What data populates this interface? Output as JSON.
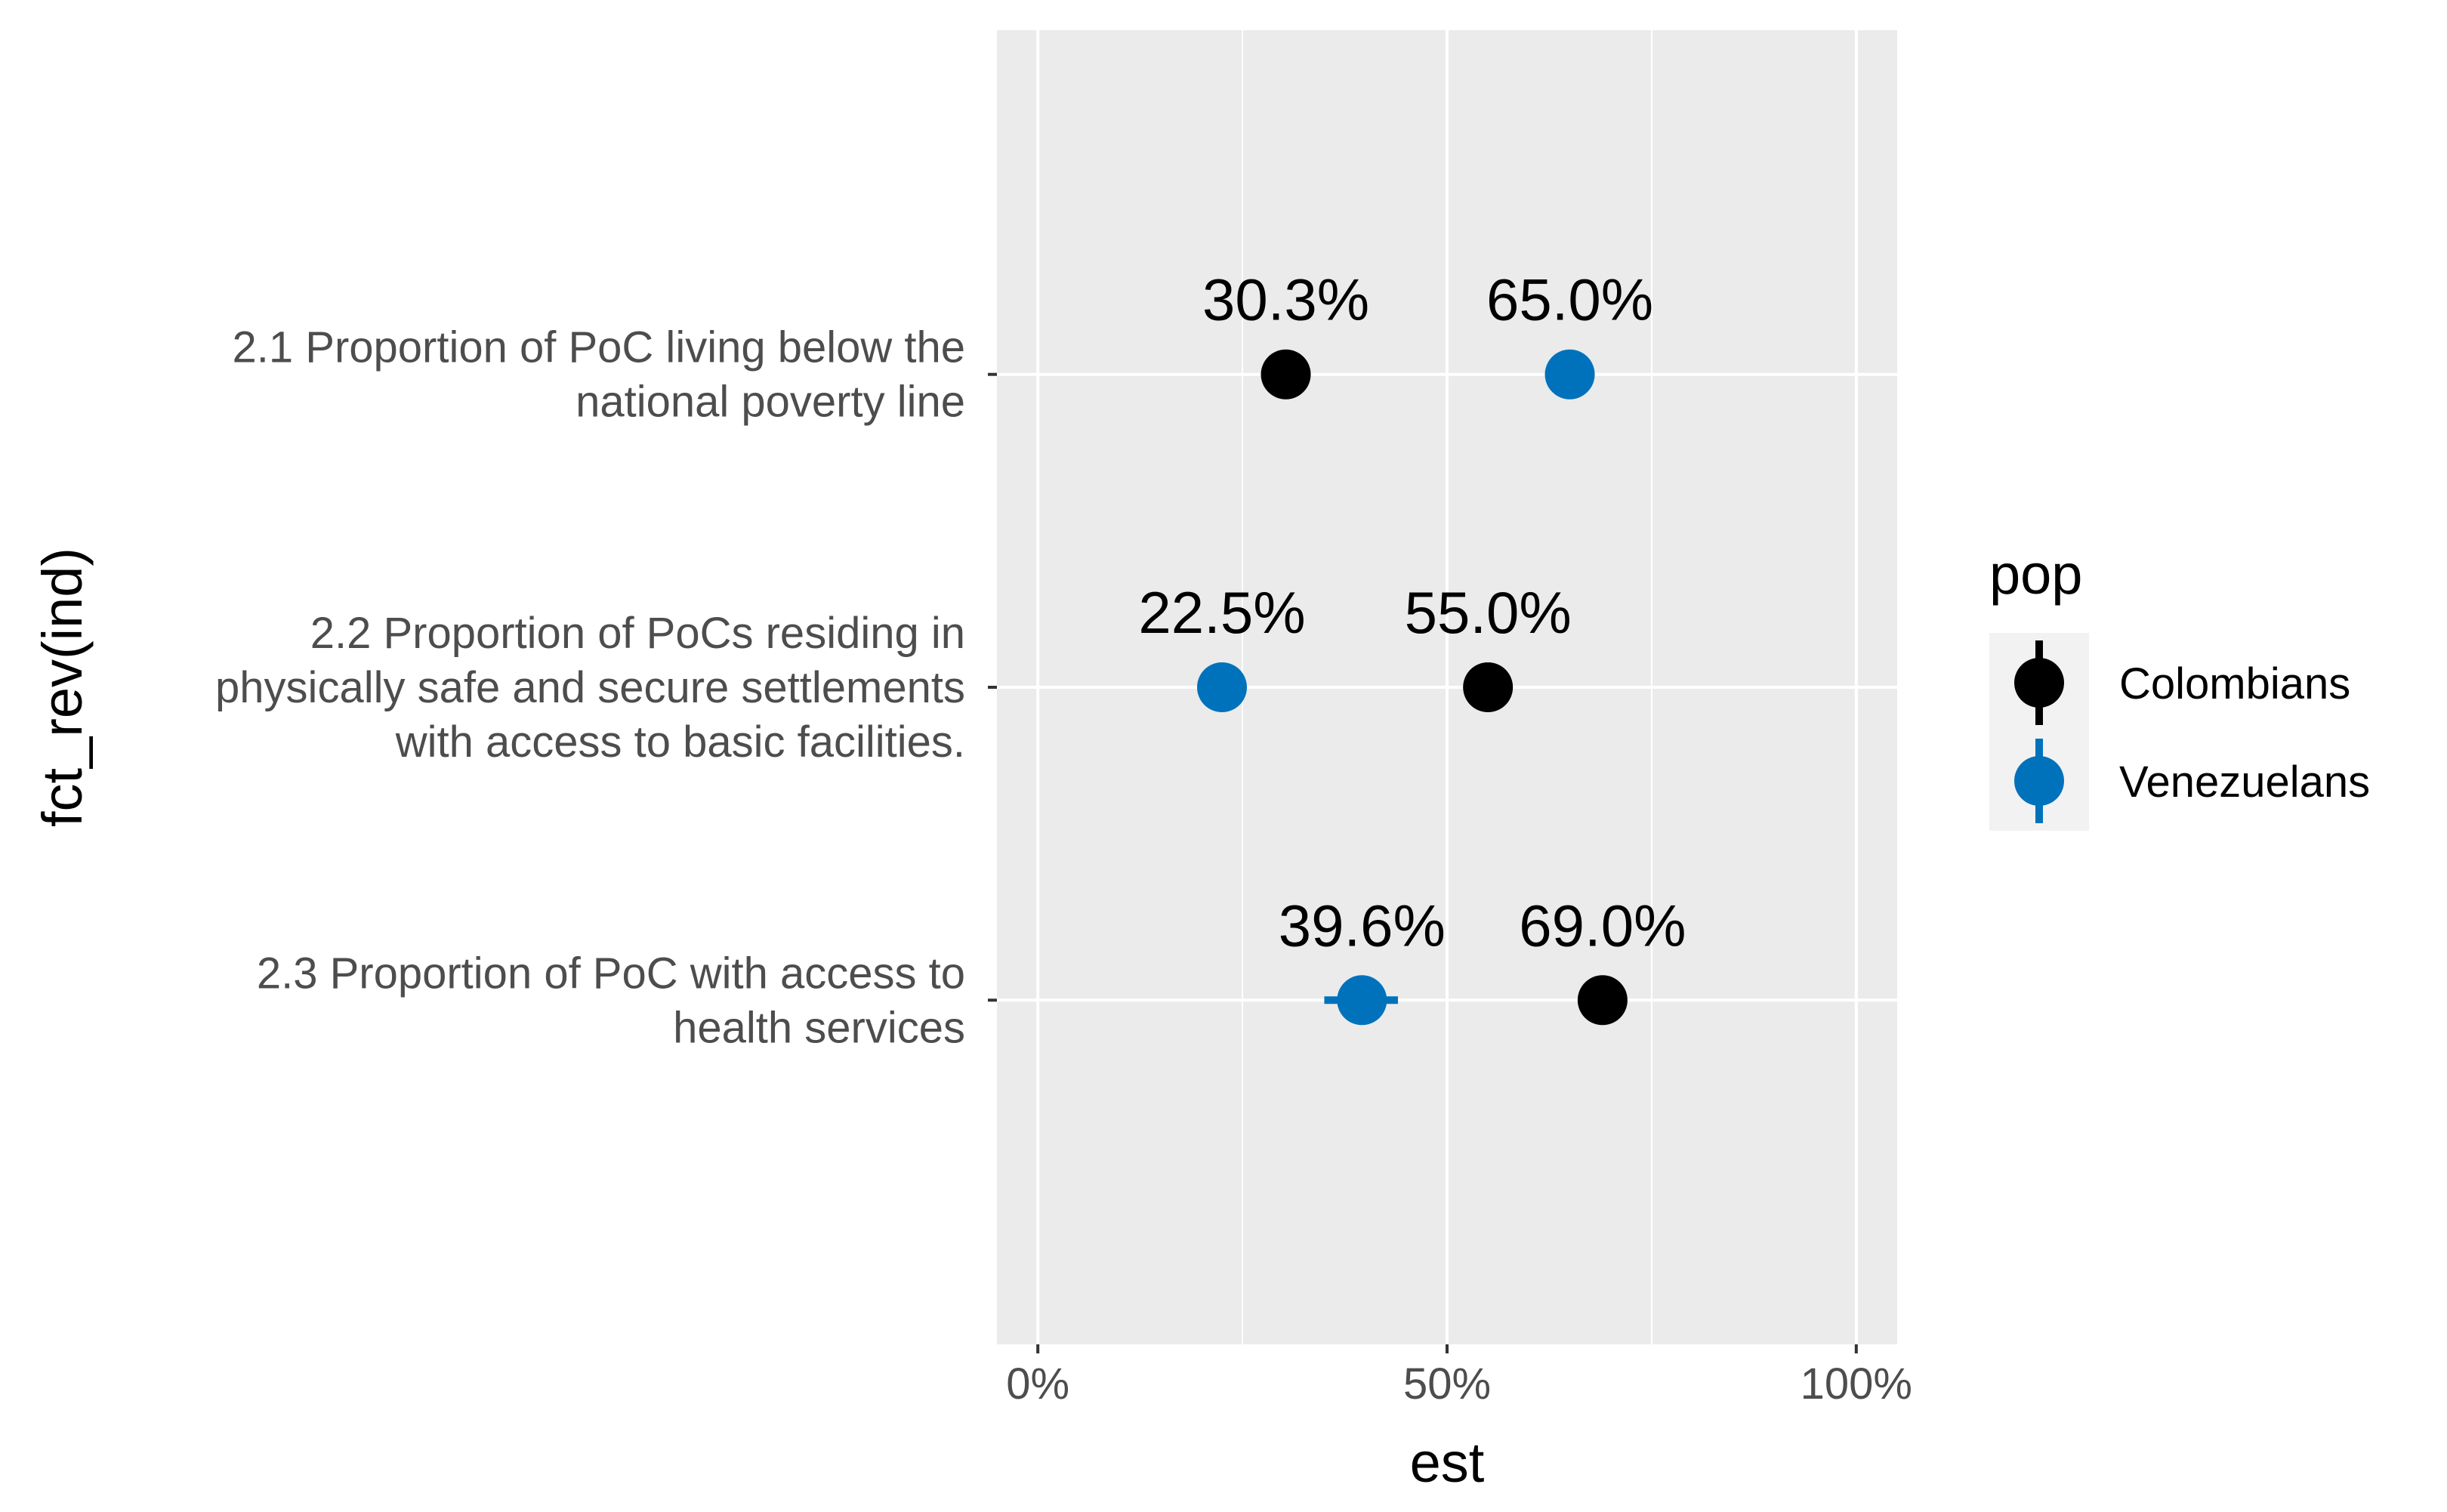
{
  "chart_data": {
    "type": "scatter",
    "title": "",
    "xlabel": "est",
    "ylabel": "fct_rev(ind)",
    "xlim": [
      -0.05,
      1.05
    ],
    "x_ticks": [
      0,
      0.5,
      1
    ],
    "x_tick_labels": [
      "0%",
      "50%",
      "100%"
    ],
    "grid": true,
    "legend_position": "right",
    "legend_title": "pop",
    "categories": [
      [
        "2.1 Proportion of PoC living below the",
        "national poverty line"
      ],
      [
        "2.2 Proportion of PoCs residing in",
        "physically safe and secure settlements",
        "with access to basic facilities."
      ],
      [
        "2.3 Proportion of PoC with access to",
        "health services"
      ]
    ],
    "series": [
      {
        "name": "Colombians",
        "color": "#000000",
        "values": [
          0.303,
          0.55,
          0.69
        ],
        "labels": [
          "30.3%",
          "55.0%",
          "69.0%"
        ],
        "error": [
          [
            0.303,
            0.303
          ],
          [
            0.55,
            0.55
          ],
          [
            0.69,
            0.69
          ]
        ]
      },
      {
        "name": "Venezuelans",
        "color": "#0072bc",
        "values": [
          0.65,
          0.225,
          0.396
        ],
        "labels": [
          "65.0%",
          "22.5%",
          "39.6%"
        ],
        "error": [
          [
            0.65,
            0.65
          ],
          [
            0.225,
            0.225
          ],
          [
            0.35,
            0.44
          ]
        ]
      }
    ]
  }
}
